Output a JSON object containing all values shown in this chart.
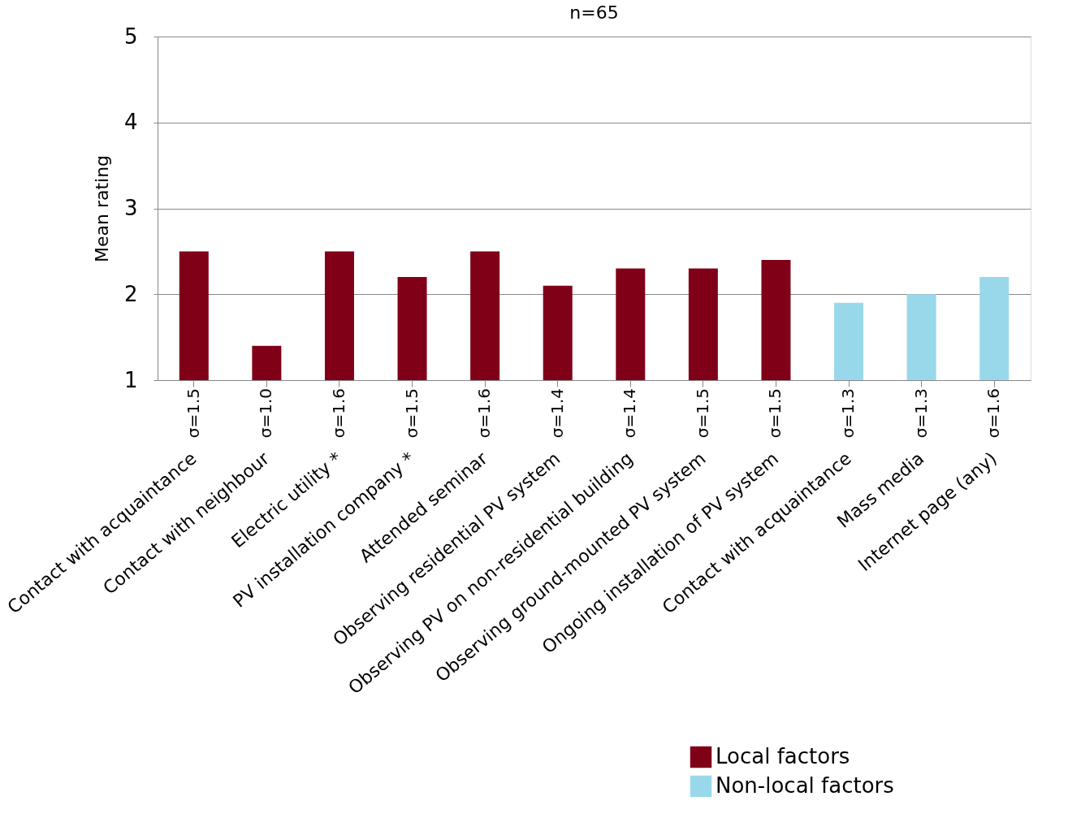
{
  "chart_data": {
    "type": "bar",
    "title": "n=65",
    "ylabel": "Mean rating",
    "categories": [
      "Contact with acquaintance",
      "Contact with neighbour",
      "Electric utility *",
      "PV installation company *",
      "Attended seminar",
      "Observing residential PV system",
      "Observing PV on non-residential building",
      "Observing ground-mounted PV system",
      "Ongoing installation of PV system",
      "Contact with acquaintance",
      "Mass media",
      "Internet page (any)"
    ],
    "series": [
      {
        "name": "Local factors",
        "color": "#800018",
        "values": [
          2.5,
          1.4,
          2.5,
          2.2,
          2.5,
          2.1,
          2.3,
          2.3,
          2.4,
          null,
          null,
          null
        ]
      },
      {
        "name": "Non-local factors",
        "color": "#99d8ea",
        "values": [
          null,
          null,
          null,
          null,
          null,
          null,
          null,
          null,
          null,
          1.9,
          2.0,
          2.2
        ]
      }
    ],
    "annotations": [
      "σ=1.5",
      "σ=1.0",
      "σ=1.6",
      "σ=1.5",
      "σ=1.6",
      "σ=1.4",
      "σ=1.4",
      "σ=1.5",
      "σ=1.5",
      "σ=1.3",
      "σ=1.3",
      "σ=1.6"
    ],
    "ylim": [
      1,
      5
    ],
    "yticks": [
      1,
      2,
      3,
      4,
      5
    ],
    "grid": "y",
    "legend": "bottom right"
  }
}
